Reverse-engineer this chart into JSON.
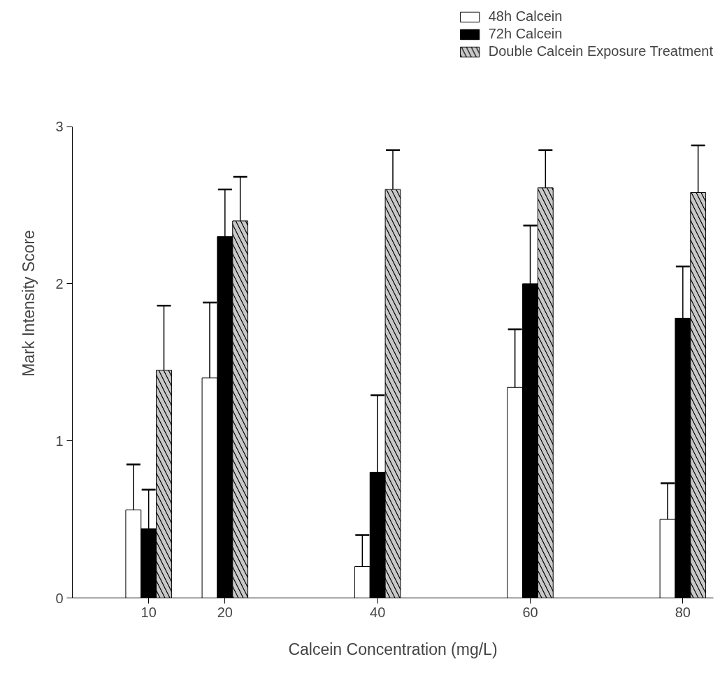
{
  "chart_data": {
    "type": "bar",
    "xlabel": "Calcein Concentration (mg/L)",
    "ylabel": "Mark Intensity Score",
    "x": [
      10,
      20,
      40,
      60,
      80
    ],
    "series": [
      {
        "name": "48h Calcein",
        "color": "#ffffff",
        "values": [
          0.56,
          1.4,
          0.2,
          1.34,
          0.5
        ],
        "errors": [
          [
            0.56,
            0.85
          ],
          [
            1.4,
            1.88
          ],
          [
            0.2,
            0.4
          ],
          [
            1.34,
            1.71
          ],
          [
            0.5,
            0.73
          ]
        ]
      },
      {
        "name": "72h Calcein",
        "color": "#000000",
        "values": [
          0.44,
          2.3,
          0.8,
          2.0,
          1.78
        ],
        "errors": [
          [
            0.44,
            0.69
          ],
          [
            2.3,
            2.6
          ],
          [
            0.8,
            1.29
          ],
          [
            2.0,
            2.37
          ],
          [
            1.78,
            2.11
          ]
        ]
      },
      {
        "name": "Double Calcein Exposure Treatment",
        "color": "#c8c8c8",
        "values": [
          1.45,
          2.4,
          2.6,
          2.61,
          2.58
        ],
        "errors": [
          [
            1.45,
            1.86
          ],
          [
            2.4,
            2.68
          ],
          [
            2.6,
            2.85
          ],
          [
            2.61,
            2.85
          ],
          [
            2.58,
            2.88
          ]
        ]
      }
    ],
    "xlim": [
      0,
      84
    ],
    "xticks": [
      10,
      20,
      40,
      60,
      80
    ],
    "ylim": [
      0,
      3
    ],
    "yticks": [
      0,
      1,
      2,
      3
    ],
    "grid": false,
    "legend": "top right"
  }
}
